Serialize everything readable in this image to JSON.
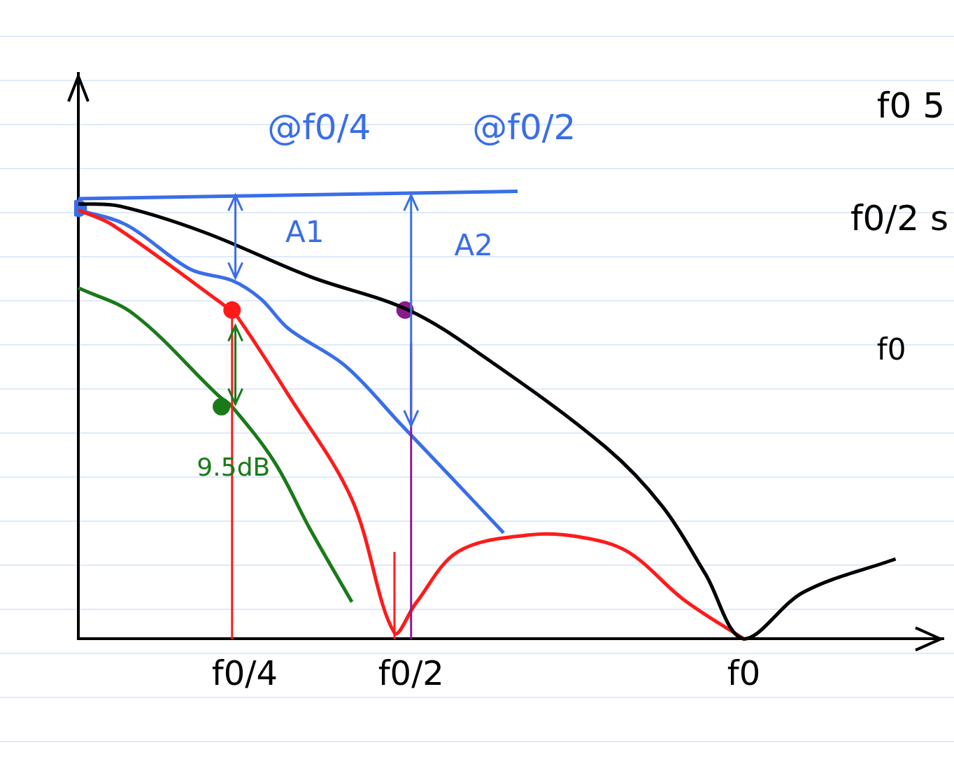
{
  "chart_data": {
    "type": "line",
    "xlim": [
      0,
      1.3
    ],
    "ylim": [
      0,
      1.3
    ],
    "xticks": [
      {
        "value": 0.25,
        "label": "f0/4"
      },
      {
        "value": 0.5,
        "label": "f0/2"
      },
      {
        "value": 1,
        "label": "f0"
      }
    ],
    "yticks": [],
    "grid": false,
    "tick_labels": "x",
    "series": [
      {
        "color": "#000000",
        "line_style": "solid",
        "marker": "none",
        "x": [
          0,
          0.062,
          0.189,
          0.348,
          0.496,
          0.613,
          0.793,
          0.878,
          0.942,
          1.0,
          1.09,
          1.228
        ],
        "values": [
          1.0,
          0.995,
          0.935,
          0.833,
          0.756,
          0.645,
          0.44,
          0.304,
          0.15,
          0,
          0.108,
          0.184
        ]
      },
      {
        "color": "#ff1a1a",
        "line_style": "solid",
        "marker": "none",
        "x": [
          0,
          0.051,
          0.221,
          0.236,
          0.316,
          0.411,
          0.475,
          0.507,
          0.571,
          0.677,
          0.751,
          0.825,
          0.91,
          1.0
        ],
        "values": [
          0.986,
          0.952,
          0.765,
          0.747,
          0.56,
          0.321,
          0.014,
          0.082,
          0.201,
          0.239,
          0.235,
          0.201,
          0.09,
          0
        ]
      },
      {
        "color": "#3a6ee8",
        "line_style": "solid",
        "marker": "none",
        "x": [
          0,
          0.072,
          0.168,
          0.231,
          0.274,
          0.316,
          0.401,
          0.486,
          0.56,
          0.639
        ],
        "values": [
          0.986,
          0.952,
          0.85,
          0.824,
          0.782,
          0.713,
          0.628,
          0.491,
          0.372,
          0.244
        ]
      },
      {
        "color": "#1a7a1a",
        "line_style": "solid",
        "marker": "none",
        "x": [
          0,
          0.083,
          0.21,
          0.231,
          0.295,
          0.348,
          0.411
        ],
        "values": [
          0.807,
          0.747,
          0.56,
          0.534,
          0.406,
          0.253,
          0.085
        ]
      },
      {
        "color": "#3a6ee8",
        "line_style": "solid",
        "marker": "none",
        "x": [
          0,
          0.66
        ],
        "values": [
          1.012,
          1.029
        ]
      },
      {
        "color": "#ff1a1a",
        "line_style": "none",
        "marker": "circle",
        "x": [
          0.231
        ],
        "values": [
          0.756
        ]
      },
      {
        "color": "#8b1a8b",
        "line_style": "none",
        "marker": "circle",
        "x": [
          0.491
        ],
        "values": [
          0.756
        ]
      },
      {
        "color": "#1a7a1a",
        "line_style": "none",
        "marker": "circle",
        "x": [
          0.215
        ],
        "values": [
          0.534
        ]
      },
      {
        "color": "#3a6ee8",
        "line_style": "none",
        "marker": "circle",
        "x": [
          0
        ],
        "values": [
          0.99
        ]
      }
    ],
    "lines": [
      {
        "x": 0.231,
        "from": 0.756,
        "to": 0,
        "color": "#ff1a1a"
      },
      {
        "x": 0.5,
        "from": 0.68,
        "to": 0,
        "color": "#8b1a8b"
      },
      {
        "x": 0.475,
        "from": 0.2,
        "to": 0,
        "color": "#ff1a1a"
      }
    ],
    "arrows": [
      {
        "x": 0.236,
        "from": 1.02,
        "to": 0.83,
        "color": "#3a6ee8"
      },
      {
        "x": 0.5,
        "from": 1.02,
        "to": 0.49,
        "color": "#3a6ee8"
      },
      {
        "x": 0.236,
        "from": 0.72,
        "to": 0.54,
        "color": "#1a7a1a"
      }
    ],
    "annotations": [
      {
        "text": "@f0/4",
        "x": 0.284,
        "y": 1.17,
        "color": "#3a6ee8"
      },
      {
        "text": "@f0/2",
        "x": 0.592,
        "y": 1.17,
        "color": "#3a6ee8"
      },
      {
        "text": "A1",
        "x": 0.311,
        "y": 0.93,
        "color": "#3a6ee8"
      },
      {
        "text": "A2",
        "x": 0.565,
        "y": 0.9,
        "color": "#3a6ee8"
      },
      {
        "text": "9.5dB",
        "x": 0.178,
        "y": 0.39,
        "color": "#1a7a1a"
      },
      {
        "text": "f0 5",
        "x": 1.2,
        "y": 1.22,
        "color": "#000000"
      },
      {
        "text": "f0/2 s",
        "x": 1.2,
        "y": 0.96,
        "color": "#000000"
      },
      {
        "text": "f0",
        "x": 1.2,
        "y": 0.66,
        "color": "#000000"
      }
    ]
  }
}
